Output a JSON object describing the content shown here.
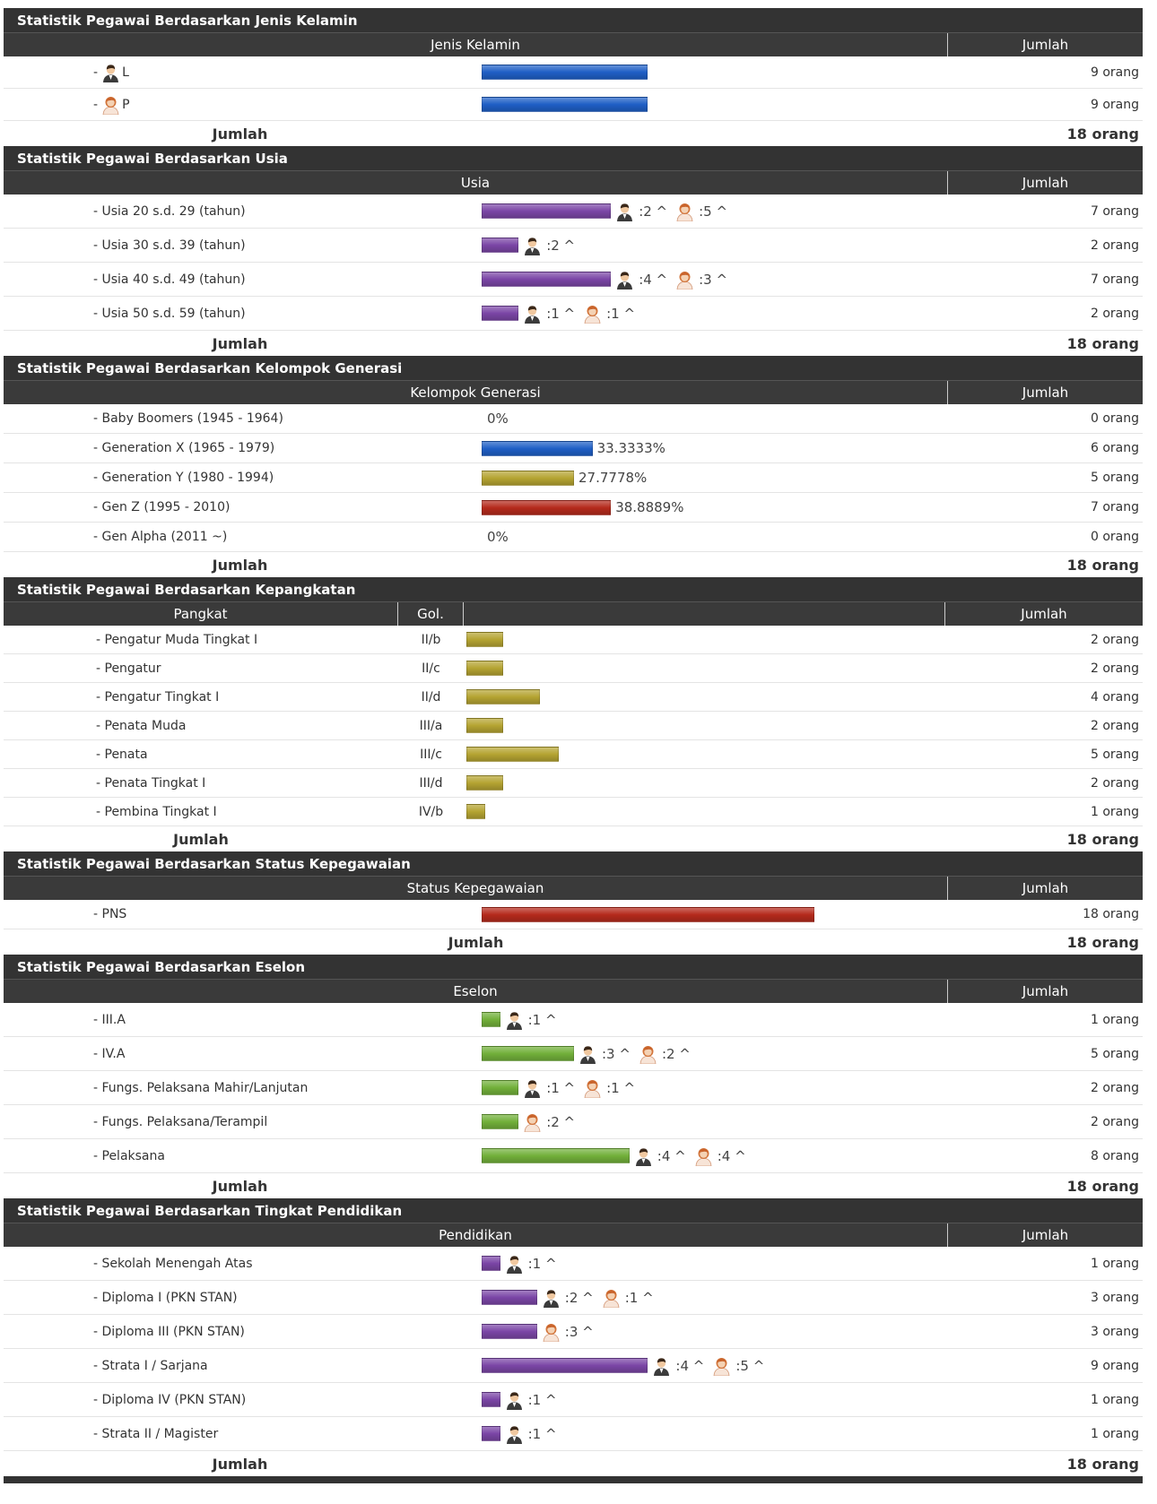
{
  "sections": [
    {
      "title": "Statistik Pegawai Berdasarkan Jenis Kelamin",
      "header": [
        "Jenis Kelamin",
        "Jumlah"
      ],
      "bar_color": "#1f5fc6",
      "rows": [
        {
          "bullet": "-",
          "gender": "male",
          "label": "L",
          "count": {
            "value": 9,
            "label": "9 orang"
          }
        },
        {
          "bullet": "-",
          "gender": "female",
          "label": "P",
          "count": {
            "value": 9,
            "label": "9 orang"
          }
        }
      ],
      "total_label": "Jumlah",
      "total": "18 orang"
    },
    {
      "title": "Statistik Pegawai Berdasarkan Usia",
      "header": [
        "Usia",
        "Jumlah"
      ],
      "bar_color": "#7b46a6",
      "rows": [
        {
          "label": "- Usia 20 s.d. 29 (tahun)",
          "male": ":2 ^",
          "female": ":5 ^",
          "count": {
            "value": 7,
            "label": "7 orang"
          }
        },
        {
          "label": "- Usia 30 s.d. 39 (tahun)",
          "male": ":2 ^",
          "count": {
            "value": 2,
            "label": "2 orang"
          }
        },
        {
          "label": "- Usia 40 s.d. 49 (tahun)",
          "male": ":4 ^",
          "female": ":3 ^",
          "count": {
            "value": 7,
            "label": "7 orang"
          }
        },
        {
          "label": "- Usia 50 s.d. 59 (tahun)",
          "male": ":1 ^",
          "female": ":1 ^",
          "count": {
            "value": 2,
            "label": "2 orang"
          }
        }
      ],
      "total_label": "Jumlah",
      "total": "18 orang"
    },
    {
      "title": "Statistik Pegawai Berdasarkan Kelompok Generasi",
      "header": [
        "Kelompok Generasi",
        "Jumlah"
      ],
      "rows": [
        {
          "label": "- Baby Boomers (1945 - 1964)",
          "percent": "0%",
          "count": {
            "value": 0,
            "label": "0 orang"
          }
        },
        {
          "label": "- Generation X (1965 - 1979)",
          "percent": "33.3333%",
          "color": "#1f5fc6",
          "count": {
            "value": 6,
            "label": "6 orang"
          }
        },
        {
          "label": "- Generation Y (1980 - 1994)",
          "percent": "27.7778%",
          "color": "#b5a432",
          "count": {
            "value": 5,
            "label": "5 orang"
          }
        },
        {
          "label": "- Gen Z (1995 - 2010)",
          "percent": "38.8889%",
          "color": "#b52a1c",
          "count": {
            "value": 7,
            "label": "7 orang"
          }
        },
        {
          "label": "- Gen Alpha (2011 ~)",
          "percent": "0%",
          "count": {
            "value": 0,
            "label": "0 orang"
          }
        }
      ],
      "total_label": "Jumlah",
      "total": "18 orang"
    },
    {
      "title": "Statistik Pegawai Berdasarkan Kepangkatan",
      "header": [
        "Pangkat",
        "Gol.",
        "Jumlah"
      ],
      "bar_color": "#b5a432",
      "rows": [
        {
          "label": "- Pengatur Muda Tingkat I",
          "gol": "II/b",
          "count": {
            "value": 2,
            "label": "2 orang"
          }
        },
        {
          "label": "- Pengatur",
          "gol": "II/c",
          "count": {
            "value": 2,
            "label": "2 orang"
          }
        },
        {
          "label": "- Pengatur Tingkat I",
          "gol": "II/d",
          "count": {
            "value": 4,
            "label": "4 orang"
          }
        },
        {
          "label": "- Penata Muda",
          "gol": "III/a",
          "count": {
            "value": 2,
            "label": "2 orang"
          }
        },
        {
          "label": "- Penata",
          "gol": "III/c",
          "count": {
            "value": 5,
            "label": "5 orang"
          }
        },
        {
          "label": "- Penata Tingkat I",
          "gol": "III/d",
          "count": {
            "value": 2,
            "label": "2 orang"
          }
        },
        {
          "label": "- Pembina Tingkat I",
          "gol": "IV/b",
          "count": {
            "value": 1,
            "label": "1 orang"
          }
        }
      ],
      "total_label": "Jumlah",
      "total": "18 orang"
    },
    {
      "title": "Statistik Pegawai Berdasarkan Status Kepegawaian",
      "header": [
        "Status Kepegawaian",
        "Jumlah"
      ],
      "bar_color": "#b52a1c",
      "rows": [
        {
          "label": "- PNS",
          "count": {
            "value": 18,
            "label": "18 orang"
          }
        }
      ],
      "total_label": "Jumlah",
      "total": "18 orang"
    },
    {
      "title": "Statistik Pegawai Berdasarkan Eselon",
      "header": [
        "Eselon",
        "Jumlah"
      ],
      "bar_color": "#72b03a",
      "rows": [
        {
          "label": "- III.A",
          "male": ":1 ^",
          "count": {
            "value": 1,
            "label": "1 orang"
          }
        },
        {
          "label": "- IV.A",
          "male": ":3 ^",
          "female": ":2 ^",
          "count": {
            "value": 5,
            "label": "5 orang"
          }
        },
        {
          "label": "- Fungs. Pelaksana Mahir/Lanjutan",
          "male": ":1 ^",
          "female": ":1 ^",
          "count": {
            "value": 2,
            "label": "2 orang"
          }
        },
        {
          "label": "- Fungs. Pelaksana/Terampil",
          "female": ":2 ^",
          "count": {
            "value": 2,
            "label": "2 orang"
          }
        },
        {
          "label": "- Pelaksana",
          "male": ":4 ^",
          "female": ":4 ^",
          "count": {
            "value": 8,
            "label": "8 orang"
          }
        }
      ],
      "total_label": "Jumlah",
      "total": "18 orang"
    },
    {
      "title": "Statistik Pegawai Berdasarkan Tingkat Pendidikan",
      "header": [
        "Pendidikan",
        "Jumlah"
      ],
      "bar_color": "#7b46a6",
      "rows": [
        {
          "label": "- Sekolah Menengah Atas",
          "male": ":1 ^",
          "count": {
            "value": 1,
            "label": "1 orang"
          }
        },
        {
          "label": "- Diploma I (PKN STAN)",
          "male": ":2 ^",
          "female": ":1 ^",
          "count": {
            "value": 3,
            "label": "3 orang"
          }
        },
        {
          "label": "- Diploma III (PKN STAN)",
          "female": ":3 ^",
          "count": {
            "value": 3,
            "label": "3 orang"
          }
        },
        {
          "label": "- Strata I / Sarjana",
          "male": ":4 ^",
          "female": ":5 ^",
          "count": {
            "value": 9,
            "label": "9 orang"
          }
        },
        {
          "label": "- Diploma IV (PKN STAN)",
          "male": ":1 ^",
          "count": {
            "value": 1,
            "label": "1 orang"
          }
        },
        {
          "label": "- Strata II / Magister",
          "male": ":1 ^",
          "count": {
            "value": 1,
            "label": "1 orang"
          }
        }
      ],
      "total_label": "Jumlah",
      "total": "18 orang"
    }
  ]
}
